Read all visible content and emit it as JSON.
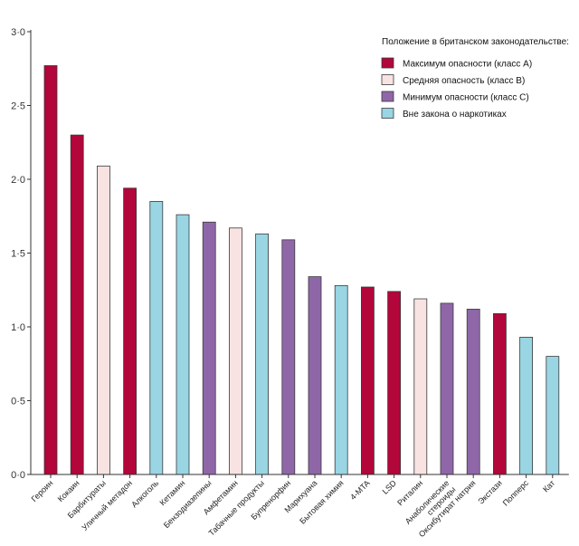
{
  "chart_data": {
    "type": "bar",
    "title": "",
    "xlabel": "",
    "ylabel": "",
    "ylim": [
      0,
      3.0
    ],
    "yticks": [
      "0·0",
      "0·5",
      "1·0",
      "1·5",
      "2·0",
      "2·5",
      "3·0"
    ],
    "ytick_values": [
      0,
      0.5,
      1.0,
      1.5,
      2.0,
      2.5,
      3.0
    ],
    "grid": false,
    "legend_position": "top-right",
    "legend_title": "Положение в британском законодательстве:",
    "classes": [
      {
        "key": "A",
        "label": "Максимум опасности (класс А)",
        "color": "#b3063a"
      },
      {
        "key": "B",
        "label": "Средняя опасность (класс В)",
        "color": "#f9e2e2"
      },
      {
        "key": "C",
        "label": "Минимум опасности (класс С)",
        "color": "#8f67a8"
      },
      {
        "key": "N",
        "label": "Вне закона о наркотиках",
        "color": "#99d5e3"
      }
    ],
    "categories": [
      [
        "Героин"
      ],
      [
        "Кокаин"
      ],
      [
        "Барбитураты"
      ],
      [
        "Уличный метадон"
      ],
      [
        "Алкоголь"
      ],
      [
        "Кетамин"
      ],
      [
        "Бензодиазепины"
      ],
      [
        "Амфетамин"
      ],
      [
        "Табачные продукты"
      ],
      [
        "Бупренорфин"
      ],
      [
        "Марихуана"
      ],
      [
        "Бытовая химия"
      ],
      [
        "4-MTA"
      ],
      [
        "LSD"
      ],
      [
        "Риталин"
      ],
      [
        "Анаболические",
        "стероиды"
      ],
      [
        "Оксибутират натрия"
      ],
      [
        "Экстази"
      ],
      [
        "Попперс"
      ],
      [
        "Кат"
      ]
    ],
    "values": [
      2.77,
      2.3,
      2.09,
      1.94,
      1.85,
      1.76,
      1.71,
      1.67,
      1.63,
      1.59,
      1.34,
      1.28,
      1.27,
      1.24,
      1.19,
      1.16,
      1.12,
      1.09,
      0.93,
      0.8
    ],
    "classes_per_bar": [
      "A",
      "A",
      "B",
      "A",
      "N",
      "N",
      "C",
      "B",
      "N",
      "C",
      "C",
      "N",
      "A",
      "A",
      "B",
      "C",
      "C",
      "A",
      "N",
      "N"
    ]
  }
}
